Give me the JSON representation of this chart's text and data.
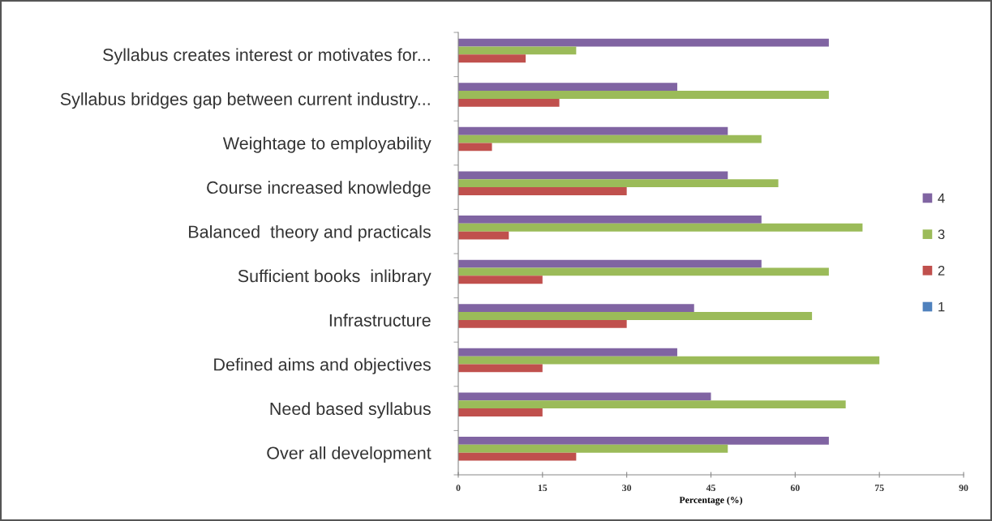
{
  "chart_data": {
    "type": "bar",
    "orientation": "horizontal",
    "categories": [
      "Syllabus creates interest or motivates for...",
      "Syllabus bridges gap between current industry...",
      "Weightage to employability",
      "Course increased knowledge",
      "Balanced  theory and practicals",
      "Sufficient books  inlibrary",
      "Infrastructure",
      "Defined aims and objectives",
      "Need based syllabus",
      "Over all development"
    ],
    "series": [
      {
        "name": "4",
        "color": "#8064a2",
        "values": [
          66,
          39,
          48,
          48,
          54,
          54,
          42,
          39,
          45,
          66
        ]
      },
      {
        "name": "3",
        "color": "#9bbb59",
        "values": [
          21,
          66,
          54,
          57,
          72,
          66,
          63,
          75,
          69,
          48
        ]
      },
      {
        "name": "2",
        "color": "#c0504d",
        "values": [
          12,
          18,
          6,
          30,
          9,
          15,
          30,
          15,
          15,
          21
        ]
      },
      {
        "name": "1",
        "color": "#4f81bd",
        "values": [
          0,
          0,
          0,
          0,
          0,
          0,
          0,
          0,
          0,
          0
        ]
      }
    ],
    "xlabel": "Percentage (%)",
    "xlim": [
      0,
      90
    ],
    "xticks": [
      0,
      15,
      30,
      45,
      60,
      75,
      90
    ],
    "grid": false,
    "legend": "right"
  }
}
